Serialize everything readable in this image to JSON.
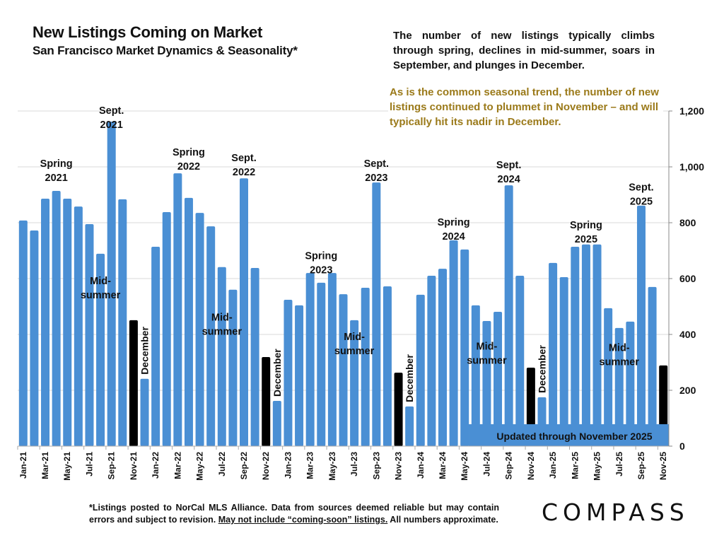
{
  "header": {
    "title": "New Listings Coming on Market",
    "subtitle": "San Francisco Market Dynamics & Seasonality*"
  },
  "description": "The number of new listings typically climbs through spring, declines in mid-summer, soars in September, and plunges in December.",
  "note": "As is the common seasonal trend, the number of new listings continued to plummet in November – and will typically hit its nadir in December.",
  "footer": {
    "part1": "*Listings posted to NorCal MLS Alliance. Data from sources deemed reliable but may contain errors and subject to revision. ",
    "underlined": "May not include “coming-soon” listings.",
    "part2": " All numbers approximate."
  },
  "logo": "COMPASS",
  "colors": {
    "bar": "#4a8fd4",
    "highlight": "#000000",
    "note_text": "#9b7a1a",
    "grid": "#d9d9d9"
  },
  "chart_data": {
    "type": "bar",
    "title": "New Listings Coming on Market",
    "xlabel": "",
    "ylabel": "",
    "ylim": [
      0,
      1200
    ],
    "yticks": [
      0,
      200,
      400,
      600,
      800,
      1000,
      1200
    ],
    "ytick_labels": [
      "0",
      "200",
      "400",
      "600",
      "800",
      "1,000",
      "1,200"
    ],
    "y_axis_side": "right",
    "grid": true,
    "categories": [
      "Jan-21",
      "Feb-21",
      "Mar-21",
      "Apr-21",
      "May-21",
      "Jun-21",
      "Jul-21",
      "Aug-21",
      "Sep-21",
      "Oct-21",
      "Nov-21",
      "Dec-21",
      "Jan-22",
      "Feb-22",
      "Mar-22",
      "Apr-22",
      "May-22",
      "Jun-22",
      "Jul-22",
      "Aug-22",
      "Sep-22",
      "Oct-22",
      "Nov-22",
      "Dec-22",
      "Jan-23",
      "Feb-23",
      "Mar-23",
      "Apr-23",
      "May-23",
      "Jun-23",
      "Jul-23",
      "Aug-23",
      "Sep-23",
      "Oct-23",
      "Nov-23",
      "Dec-23",
      "Jan-24",
      "Feb-24",
      "Mar-24",
      "Apr-24",
      "May-24",
      "Jun-24",
      "Jul-24",
      "Aug-24",
      "Sep-24",
      "Oct-24",
      "Nov-24",
      "Dec-24",
      "Jan-25",
      "Feb-25",
      "Mar-25",
      "Apr-25",
      "May-25",
      "Jun-25",
      "Jul-25",
      "Aug-25",
      "Sep-25",
      "Oct-25",
      "Nov-25"
    ],
    "values": [
      808,
      772,
      886,
      914,
      886,
      858,
      795,
      689,
      1162,
      884,
      451,
      241,
      714,
      838,
      977,
      889,
      835,
      787,
      641,
      560,
      959,
      638,
      319,
      162,
      524,
      504,
      620,
      585,
      620,
      544,
      451,
      567,
      944,
      572,
      263,
      142,
      542,
      610,
      635,
      737,
      704,
      504,
      448,
      481,
      934,
      610,
      281,
      175,
      656,
      605,
      714,
      722,
      722,
      494,
      423,
      446,
      861,
      570,
      289
    ],
    "highlighted_categories": [
      "Nov-21",
      "Nov-22",
      "Nov-23",
      "Nov-24",
      "Nov-25"
    ],
    "tick_label_every": 2,
    "annotations": [
      {
        "text": [
          "Spring",
          "2021"
        ],
        "category": "Apr-21",
        "y": 1000
      },
      {
        "text": [
          "Sept.",
          "2021"
        ],
        "category": "Sep-21",
        "y": 1190
      },
      {
        "text": [
          "Mid-",
          "summer"
        ],
        "category": "Aug-21",
        "y": 580
      },
      {
        "text": [
          "December"
        ],
        "category": "Dec-21",
        "y": 0,
        "vertical": true,
        "anchorValue": 241
      },
      {
        "text": [
          "Spring",
          "2022"
        ],
        "category": "Apr-22",
        "y": 1040
      },
      {
        "text": [
          "Sept.",
          "2022"
        ],
        "category": "Sep-22",
        "y": 1020
      },
      {
        "text": [
          "Mid-",
          "summer"
        ],
        "category": "Jul-22",
        "y": 450
      },
      {
        "text": [
          "December"
        ],
        "category": "Dec-22",
        "y": 0,
        "vertical": true,
        "anchorValue": 162
      },
      {
        "text": [
          "Spring",
          "2023"
        ],
        "category": "Apr-23",
        "y": 670
      },
      {
        "text": [
          "Sept.",
          "2023"
        ],
        "category": "Sep-23",
        "y": 1000
      },
      {
        "text": [
          "Mid-",
          "summer"
        ],
        "category": "Jul-23",
        "y": 380
      },
      {
        "text": [
          "December"
        ],
        "category": "Dec-23",
        "y": 0,
        "vertical": true,
        "anchorValue": 142
      },
      {
        "text": [
          "Spring",
          "2024"
        ],
        "category": "Apr-24",
        "y": 790
      },
      {
        "text": [
          "Sept.",
          "2024"
        ],
        "category": "Sep-24",
        "y": 995
      },
      {
        "text": [
          "Mid-",
          "summer"
        ],
        "category": "Jul-24",
        "y": 345
      },
      {
        "text": [
          "December"
        ],
        "category": "Dec-24",
        "y": 0,
        "vertical": true,
        "anchorValue": 175
      },
      {
        "text": [
          "Spring",
          "2025"
        ],
        "category": "Apr-25",
        "y": 780
      },
      {
        "text": [
          "Sept.",
          "2025"
        ],
        "category": "Sep-25",
        "y": 915
      },
      {
        "text": [
          "Mid-",
          "summer"
        ],
        "category": "Jul-25",
        "y": 340
      }
    ],
    "banner": "Updated through November 2025"
  }
}
